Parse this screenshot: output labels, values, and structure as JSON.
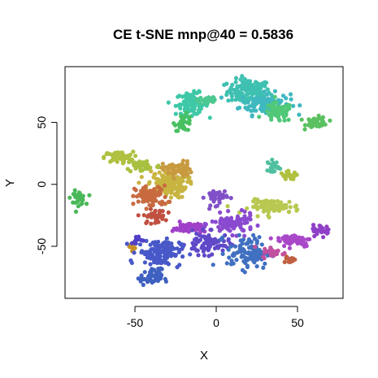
{
  "chart_data": {
    "type": "scatter",
    "title": "CE t-SNE mnp@40 = 0.5836",
    "xlabel": "X",
    "ylabel": "Y",
    "xlim": [
      -93,
      78
    ],
    "ylim": [
      -92,
      95
    ],
    "x_ticks": [
      -50,
      0,
      50
    ],
    "x_tick_labels": [
      "-50",
      "0",
      "50"
    ],
    "y_ticks": [
      -50,
      0,
      50
    ],
    "y_tick_labels": [
      "-50",
      "0",
      "50"
    ],
    "grid": false,
    "legend": "none",
    "clusters": [
      {
        "color": "#3fc0b0",
        "cx": 20,
        "cy": 75,
        "rx": 12,
        "ry": 9,
        "n": 130
      },
      {
        "color": "#40b8c0",
        "cx": 30,
        "cy": 65,
        "rx": 14,
        "ry": 8,
        "n": 110
      },
      {
        "color": "#3ec8a8",
        "cx": -15,
        "cy": 65,
        "rx": 9,
        "ry": 8,
        "n": 90
      },
      {
        "color": "#4cc890",
        "cx": -5,
        "cy": 68,
        "rx": 6,
        "ry": 4,
        "n": 30
      },
      {
        "color": "#50c878",
        "cx": 38,
        "cy": 58,
        "rx": 8,
        "ry": 7,
        "n": 70
      },
      {
        "color": "#5ac060",
        "cx": 62,
        "cy": 50,
        "rx": 6,
        "ry": 4,
        "n": 45
      },
      {
        "color": "#48c060",
        "cx": -20,
        "cy": 50,
        "rx": 5,
        "ry": 6,
        "n": 30
      },
      {
        "color": "#4ab858",
        "cx": -85,
        "cy": -11,
        "rx": 4,
        "ry": 5,
        "n": 40
      },
      {
        "color": "#b0c040",
        "cx": -60,
        "cy": 22,
        "rx": 8,
        "ry": 4,
        "n": 60
      },
      {
        "color": "#a8c040",
        "cx": -45,
        "cy": 15,
        "rx": 10,
        "ry": 5,
        "n": 50
      },
      {
        "color": "#c8b440",
        "cx": -30,
        "cy": 0,
        "rx": 11,
        "ry": 10,
        "n": 150
      },
      {
        "color": "#c89a40",
        "cx": -24,
        "cy": 12,
        "rx": 8,
        "ry": 6,
        "n": 60
      },
      {
        "color": "#c86a40",
        "cx": -40,
        "cy": -10,
        "rx": 9,
        "ry": 8,
        "n": 80
      },
      {
        "color": "#c05040",
        "cx": -38,
        "cy": -26,
        "rx": 6,
        "ry": 5,
        "n": 40
      },
      {
        "color": "#c8902a",
        "cx": -52,
        "cy": -50,
        "rx": 4,
        "ry": 3,
        "n": 15
      },
      {
        "color": "#b8c850",
        "cx": 36,
        "cy": -18,
        "rx": 14,
        "ry": 5,
        "n": 80
      },
      {
        "color": "#50c0a0",
        "cx": 35,
        "cy": 15,
        "rx": 3,
        "ry": 4,
        "n": 25
      },
      {
        "color": "#b0c040",
        "cx": 45,
        "cy": 7,
        "rx": 5,
        "ry": 3,
        "n": 25
      },
      {
        "color": "#8050c8",
        "cx": 0,
        "cy": -10,
        "rx": 6,
        "ry": 6,
        "n": 40
      },
      {
        "color": "#a040c8",
        "cx": -17,
        "cy": -35,
        "rx": 9,
        "ry": 4,
        "n": 50
      },
      {
        "color": "#8a4ad0",
        "cx": 10,
        "cy": -32,
        "rx": 12,
        "ry": 7,
        "n": 90
      },
      {
        "color": "#6048c8",
        "cx": -5,
        "cy": -48,
        "rx": 12,
        "ry": 8,
        "n": 80
      },
      {
        "color": "#4858c8",
        "cx": -35,
        "cy": -55,
        "rx": 12,
        "ry": 10,
        "n": 130
      },
      {
        "color": "#3e60c0",
        "cx": -40,
        "cy": -75,
        "rx": 6,
        "ry": 6,
        "n": 50
      },
      {
        "color": "#4070c0",
        "cx": 20,
        "cy": -55,
        "rx": 12,
        "ry": 12,
        "n": 110
      },
      {
        "color": "#a848c8",
        "cx": 48,
        "cy": -45,
        "rx": 10,
        "ry": 5,
        "n": 60
      },
      {
        "color": "#9040c8",
        "cx": 65,
        "cy": -37,
        "rx": 5,
        "ry": 4,
        "n": 35
      },
      {
        "color": "#c050a0",
        "cx": 35,
        "cy": -55,
        "rx": 6,
        "ry": 4,
        "n": 30
      },
      {
        "color": "#c06040",
        "cx": 45,
        "cy": -60,
        "rx": 4,
        "ry": 3,
        "n": 12
      },
      {
        "color": "#5040c8",
        "cx": -48,
        "cy": -45,
        "rx": 4,
        "ry": 3,
        "n": 15
      }
    ]
  }
}
